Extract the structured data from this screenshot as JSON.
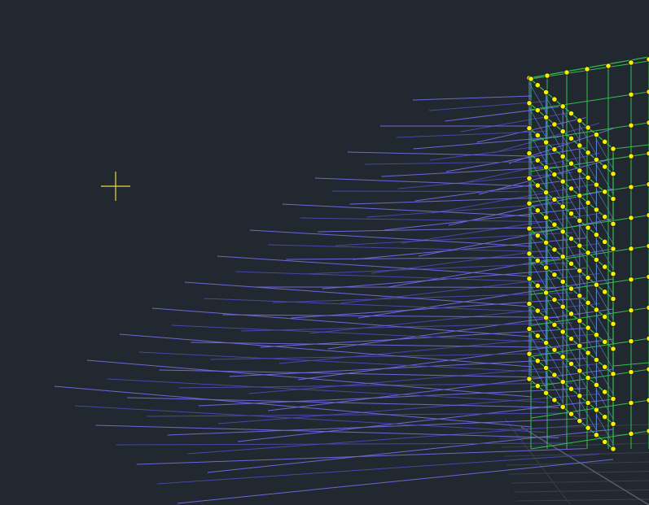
{
  "viewport": {
    "background": "#212830",
    "cursor_color": "#e8d84a",
    "cursor_icon": "crosshair-icon"
  },
  "scene": {
    "ground_grid_color": "#3a4048",
    "axis_color": "#5a6068",
    "slab_line_color": "#6f66d8",
    "slab_line_dark_color": "#4a46a8",
    "frame_green_color": "#33c04a",
    "frame_blue_color": "#5a8ad8",
    "node_color": "#f4f000",
    "node_outline_color": "#1a1a1a"
  }
}
